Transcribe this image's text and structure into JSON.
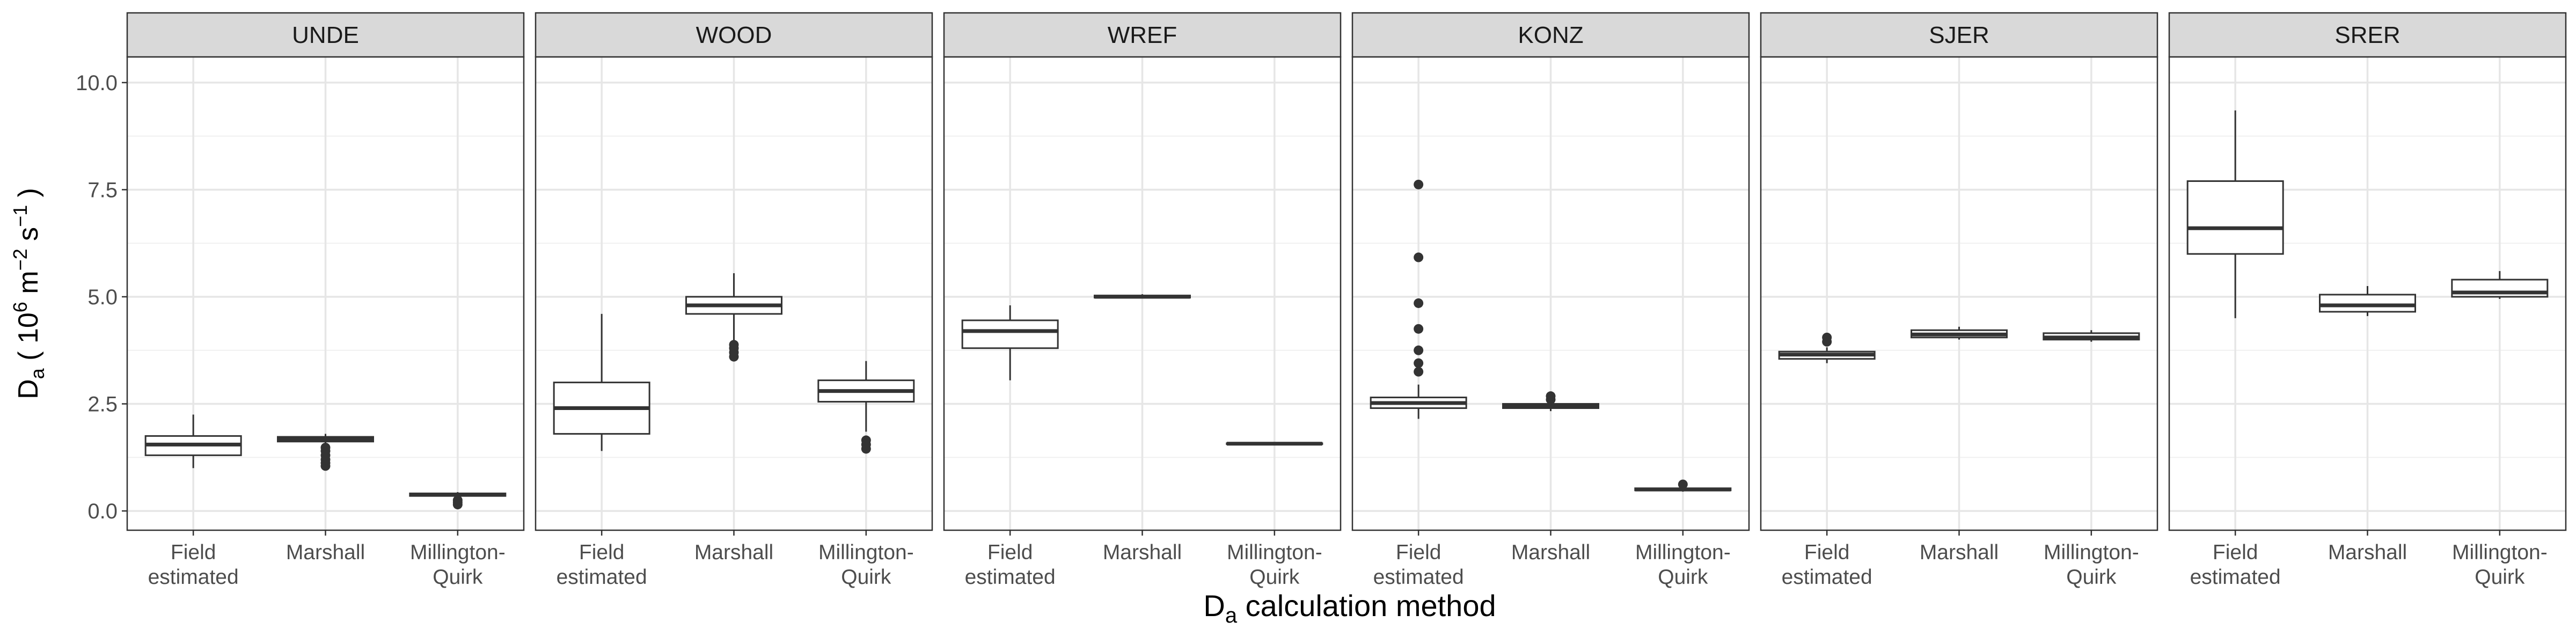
{
  "chart_data": {
    "type": "boxplot",
    "facet_by": "site",
    "xlabel": {
      "main": "D",
      "sub": "a",
      "rest": " calculation method"
    },
    "ylabel": {
      "main": "D",
      "sub": "a",
      "pre_unit": " ( 10",
      "exp1": "6",
      "mid": " m",
      "exp2": "−2",
      "mid2": " s",
      "exp3": "−1",
      "end": " )"
    },
    "ylim": [
      -0.45,
      10.6
    ],
    "yticks": [
      0.0,
      2.5,
      5.0,
      7.5,
      10.0
    ],
    "ytick_labels": [
      "0.0",
      "2.5",
      "5.0",
      "7.5",
      "10.0"
    ],
    "grid": true,
    "categories": [
      {
        "line1": "Field",
        "line2": "estimated"
      },
      {
        "line1": "Marshall",
        "line2": ""
      },
      {
        "line1": "Millington-",
        "line2": "Quirk"
      }
    ],
    "facets": [
      {
        "name": "UNDE",
        "boxes": [
          {
            "min": 1.0,
            "q1": 1.3,
            "median": 1.55,
            "q3": 1.75,
            "max": 2.25,
            "outliers": []
          },
          {
            "min": 1.55,
            "q1": 1.62,
            "median": 1.68,
            "q3": 1.73,
            "max": 1.8,
            "outliers": [
              1.05,
              1.12,
              1.2,
              1.3,
              1.4,
              1.48
            ]
          },
          {
            "min": 0.32,
            "q1": 0.35,
            "median": 0.38,
            "q3": 0.41,
            "max": 0.44,
            "outliers": [
              0.15,
              0.2,
              0.25
            ]
          }
        ]
      },
      {
        "name": "WOOD",
        "boxes": [
          {
            "min": 1.4,
            "q1": 1.8,
            "median": 2.4,
            "q3": 3.0,
            "max": 4.6,
            "outliers": []
          },
          {
            "min": 3.95,
            "q1": 4.6,
            "median": 4.8,
            "q3": 5.0,
            "max": 5.55,
            "outliers": [
              3.6,
              3.7,
              3.8,
              3.88
            ]
          },
          {
            "min": 1.85,
            "q1": 2.55,
            "median": 2.8,
            "q3": 3.05,
            "max": 3.5,
            "outliers": [
              1.45,
              1.55,
              1.65
            ]
          }
        ]
      },
      {
        "name": "WREF",
        "boxes": [
          {
            "min": 3.05,
            "q1": 3.8,
            "median": 4.2,
            "q3": 4.45,
            "max": 4.8,
            "outliers": []
          },
          {
            "min": 4.96,
            "q1": 4.98,
            "median": 5.0,
            "q3": 5.03,
            "max": 5.06,
            "outliers": []
          },
          {
            "min": 1.55,
            "q1": 1.56,
            "median": 1.57,
            "q3": 1.58,
            "max": 1.59,
            "outliers": []
          }
        ]
      },
      {
        "name": "KONZ",
        "boxes": [
          {
            "min": 2.15,
            "q1": 2.4,
            "median": 2.52,
            "q3": 2.65,
            "max": 2.95,
            "outliers": [
              3.25,
              3.45,
              3.75,
              4.25,
              4.85,
              5.92,
              7.62
            ]
          },
          {
            "min": 2.33,
            "q1": 2.4,
            "median": 2.45,
            "q3": 2.5,
            "max": 2.56,
            "outliers": [
              2.6,
              2.68
            ]
          },
          {
            "min": 0.45,
            "q1": 0.48,
            "median": 0.5,
            "q3": 0.53,
            "max": 0.56,
            "outliers": [
              0.62
            ]
          }
        ]
      },
      {
        "name": "SJER",
        "boxes": [
          {
            "min": 3.45,
            "q1": 3.55,
            "median": 3.65,
            "q3": 3.72,
            "max": 3.82,
            "outliers": [
              3.95,
              4.05
            ]
          },
          {
            "min": 4.0,
            "q1": 4.05,
            "median": 4.12,
            "q3": 4.22,
            "max": 4.3,
            "outliers": []
          },
          {
            "min": 3.95,
            "q1": 4.0,
            "median": 4.05,
            "q3": 4.15,
            "max": 4.22,
            "outliers": []
          }
        ]
      },
      {
        "name": "SRER",
        "boxes": [
          {
            "min": 4.5,
            "q1": 6.0,
            "median": 6.6,
            "q3": 7.7,
            "max": 9.35,
            "outliers": []
          },
          {
            "min": 4.55,
            "q1": 4.65,
            "median": 4.8,
            "q3": 5.05,
            "max": 5.25,
            "outliers": []
          },
          {
            "min": 4.95,
            "q1": 5.0,
            "median": 5.1,
            "q3": 5.4,
            "max": 5.6,
            "outliers": []
          }
        ]
      }
    ]
  }
}
